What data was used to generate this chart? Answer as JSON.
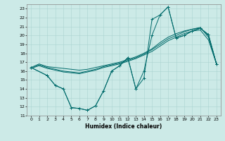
{
  "xlabel": "Humidex (Indice chaleur)",
  "xlim": [
    -0.5,
    23.5
  ],
  "ylim": [
    11,
    23.5
  ],
  "yticks": [
    11,
    12,
    13,
    14,
    15,
    16,
    17,
    18,
    19,
    20,
    21,
    22,
    23
  ],
  "xticks": [
    0,
    1,
    2,
    3,
    4,
    5,
    6,
    7,
    8,
    9,
    10,
    11,
    12,
    13,
    14,
    15,
    16,
    17,
    18,
    19,
    20,
    21,
    22,
    23
  ],
  "bg_color": "#cceae7",
  "grid_color": "#aad4d0",
  "line_color": "#006b6b",
  "line1_x": [
    0,
    2,
    3,
    4,
    5,
    6,
    7,
    8,
    9,
    10,
    11,
    12,
    13,
    14,
    15,
    16,
    17,
    18,
    19,
    20,
    21,
    22,
    23
  ],
  "line1_y": [
    16.4,
    15.5,
    14.4,
    14.0,
    11.9,
    11.8,
    11.6,
    12.1,
    13.8,
    16.0,
    16.6,
    17.5,
    14.0,
    15.2,
    21.8,
    22.3,
    23.2,
    19.7,
    20.0,
    20.5,
    20.8,
    20.1,
    16.8
  ],
  "line1_markers": true,
  "line2_x": [
    0,
    2,
    3,
    4,
    5,
    6,
    7,
    8,
    9,
    10,
    11,
    12,
    13,
    14,
    15,
    16,
    17,
    18,
    19,
    20,
    21,
    22,
    23
  ],
  "line2_y": [
    16.4,
    15.5,
    14.4,
    14.0,
    11.9,
    11.8,
    11.6,
    12.1,
    13.8,
    16.0,
    16.6,
    17.5,
    14.0,
    16.0,
    20.0,
    22.3,
    23.2,
    19.7,
    20.0,
    20.5,
    20.8,
    20.1,
    16.8
  ],
  "line2_markers": true,
  "smooth1_x": [
    0,
    1,
    2,
    3,
    4,
    5,
    6,
    7,
    8,
    9,
    10,
    11,
    12,
    13,
    14,
    15,
    16,
    17,
    18,
    19,
    20,
    21,
    22,
    23
  ],
  "smooth1_y": [
    16.4,
    16.8,
    16.5,
    16.4,
    16.3,
    16.2,
    16.1,
    16.2,
    16.4,
    16.6,
    16.8,
    17.0,
    17.3,
    17.6,
    18.0,
    18.5,
    19.2,
    19.8,
    20.2,
    20.5,
    20.7,
    20.8,
    20.0,
    16.8
  ],
  "smooth2_y": [
    16.3,
    16.7,
    16.4,
    16.2,
    16.0,
    15.9,
    15.8,
    16.0,
    16.2,
    16.5,
    16.7,
    16.9,
    17.2,
    17.5,
    17.9,
    18.4,
    19.0,
    19.6,
    20.0,
    20.4,
    20.7,
    20.9,
    19.8,
    16.8
  ],
  "smooth3_y": [
    16.3,
    16.6,
    16.3,
    16.1,
    15.9,
    15.8,
    15.7,
    15.9,
    16.1,
    16.4,
    16.6,
    16.8,
    17.1,
    17.4,
    17.8,
    18.2,
    18.8,
    19.4,
    19.8,
    20.2,
    20.5,
    20.6,
    19.5,
    16.8
  ]
}
